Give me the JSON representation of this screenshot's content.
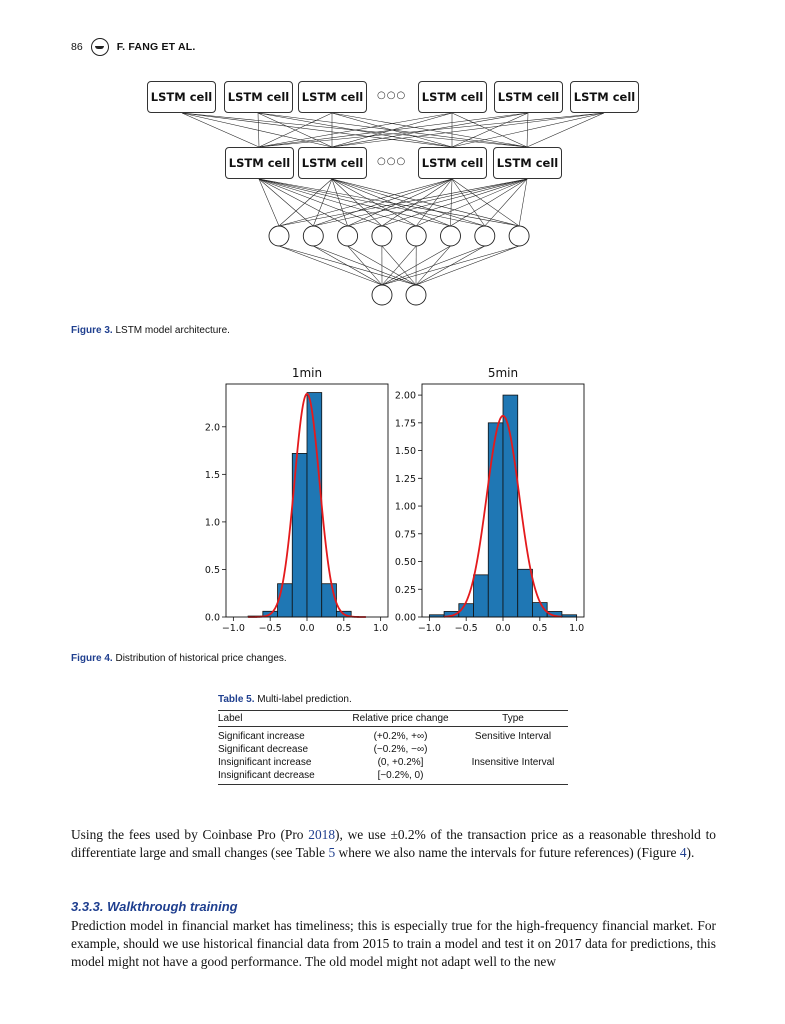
{
  "header": {
    "page_number": "86",
    "authors": "F. FANG ET AL."
  },
  "figure3": {
    "top_row": [
      "LSTM cell",
      "LSTM cell",
      "LSTM cell",
      "LSTM cell",
      "LSTM cell",
      "LSTM cell"
    ],
    "second_row": [
      "LSTM cell",
      "LSTM cell",
      "LSTM cell",
      "LSTM cell"
    ],
    "ellipsis": "○○○",
    "hidden_nodes": 8,
    "output_nodes": 2,
    "caption_label": "Figure 3.",
    "caption_text": "LSTM model architecture."
  },
  "figure4": {
    "caption_label": "Figure 4.",
    "caption_text": "Distribution of historical price changes."
  },
  "chart_data": [
    {
      "type": "bar",
      "title": "1min",
      "xlim": [
        -1.1,
        1.1
      ],
      "ylim": [
        0,
        2.45
      ],
      "xticks": [
        "−1.0",
        "−0.5",
        "0.0",
        "0.5",
        "1.0"
      ],
      "yticks": [
        "0.0",
        "0.5",
        "1.0",
        "1.5",
        "2.0"
      ],
      "bin_edges": [
        -0.8,
        -0.6,
        -0.4,
        -0.2,
        0.0,
        0.2,
        0.4,
        0.6
      ],
      "values": [
        0.01,
        0.06,
        0.35,
        1.72,
        2.36,
        0.35,
        0.06
      ],
      "curve": {
        "type": "normal-pdf",
        "mean": 0.0,
        "sd": 0.17
      },
      "grid": false,
      "bar_color": "#1f77b4",
      "curve_color": "#e41a1c"
    },
    {
      "type": "bar",
      "title": "5min",
      "xlim": [
        -1.1,
        1.1
      ],
      "ylim": [
        0,
        2.1
      ],
      "xticks": [
        "−1.0",
        "−0.5",
        "0.0",
        "0.5",
        "1.0"
      ],
      "yticks": [
        "0.00",
        "0.25",
        "0.50",
        "0.75",
        "1.00",
        "1.25",
        "1.50",
        "1.75",
        "2.00"
      ],
      "bin_edges": [
        -1.0,
        -0.8,
        -0.6,
        -0.4,
        -0.2,
        0.0,
        0.2,
        0.4,
        0.6,
        0.8,
        1.0
      ],
      "values": [
        0.02,
        0.05,
        0.12,
        0.38,
        1.75,
        2.0,
        0.43,
        0.13,
        0.05,
        0.02
      ],
      "curve": {
        "type": "normal-pdf",
        "mean": 0.0,
        "sd": 0.22
      },
      "grid": false,
      "bar_color": "#1f77b4",
      "curve_color": "#e41a1c"
    }
  ],
  "table5": {
    "label": "Table 5.",
    "title": "Multi-label prediction.",
    "headers": [
      "Label",
      "Relative price change",
      "Type"
    ],
    "rows": [
      [
        "Significant increase",
        "(+0.2%, +∞)",
        "Sensitive Interval"
      ],
      [
        "Significant decrease",
        "(−0.2%, −∞)",
        ""
      ],
      [
        "Insignificant increase",
        "(0, +0.2%]",
        "Insensitive Interval"
      ],
      [
        "Insignificant decrease",
        "[−0.2%, 0)",
        ""
      ]
    ]
  },
  "body": {
    "p1_a": "Using the fees used by Coinbase Pro (Pro ",
    "p1_link1": "2018",
    "p1_b": "), we use ±0.2% of the transaction price as a reasonable threshold to differentiate large and small changes (see Table ",
    "p1_link2": "5",
    "p1_c": " where we also name the intervals for future references) (Figure ",
    "p1_link3": "4",
    "p1_d": ").",
    "section_heading": "3.3.3. Walkthrough training",
    "p2": "Prediction model in financial market has timeliness; this is especially true for the high-frequency financial market. For example, should we use historical financial data from 2015 to train a model and test it on 2017 data for predictions, this model might not have a good performance. The old model might not adapt well to the new"
  }
}
